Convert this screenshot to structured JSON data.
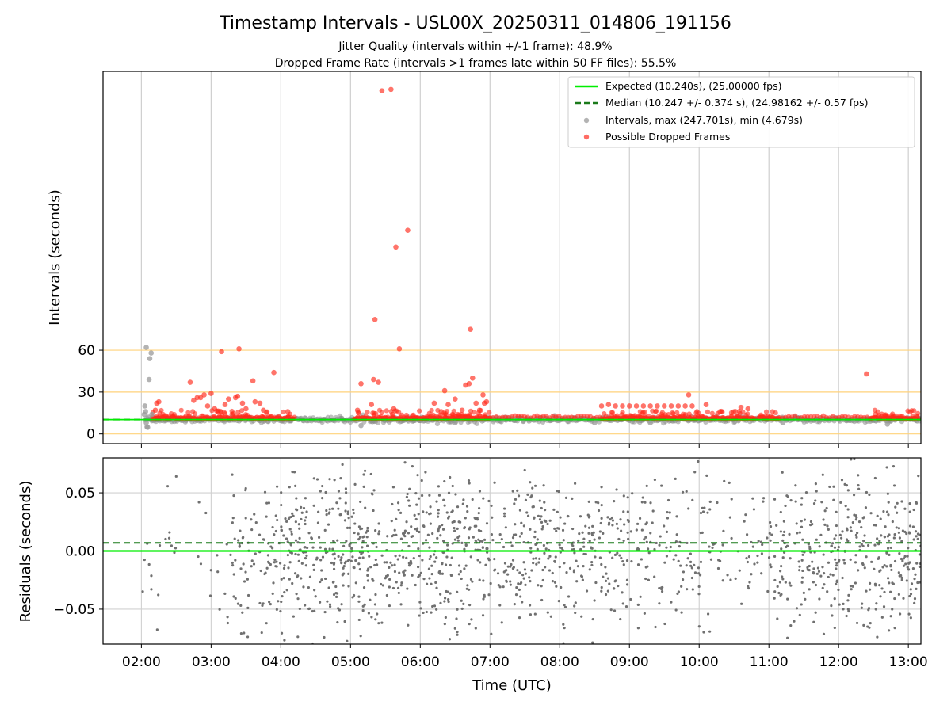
{
  "chart_data": [
    {
      "type": "scatter",
      "title": "Timestamp Intervals - USL00X_20250311_014806_191156",
      "subtitle_lines": [
        "Jitter Quality (intervals within +/-1 frame): 48.9%",
        "Dropped Frame Rate (intervals >1 frames late within 50 FF files): 55.5%"
      ],
      "xlabel": "",
      "ylabel": "Intervals (seconds)",
      "x_range_hours": [
        1.45,
        13.18
      ],
      "ylim": [
        -7,
        260
      ],
      "yticks": [
        0,
        30,
        60
      ],
      "ytick_labels": [
        "0",
        "30",
        "60"
      ],
      "reference_lines": [
        0,
        30,
        60
      ],
      "reference_line_color": "#ffd27a",
      "grid_x": true,
      "legend": {
        "placement": "top-right",
        "entries": [
          {
            "label": "Expected (10.240s), (25.00000 fps)",
            "kind": "solid-line",
            "color": "#00ee00"
          },
          {
            "label": "Median (10.247 +/- 0.374 s), (24.98162 +/- 0.57 fps)",
            "kind": "dashed-line",
            "color": "#1a7a1a"
          },
          {
            "label": "Intervals, max (247.701s), min (4.679s)",
            "kind": "marker",
            "color": "#999999"
          },
          {
            "label": "Possible Dropped Frames",
            "kind": "marker",
            "color": "#ff3b30"
          }
        ]
      },
      "expected_interval": 10.24,
      "median_interval": 10.247,
      "colors": {
        "intervals": "#8c8c8c",
        "dropped": "#ff2a1a",
        "expected": "#00ee00",
        "median": "#1a7a1a"
      },
      "series": [
        {
          "name": "Intervals, max (247.701s), min (4.679s)",
          "points": [
            [
              2.05,
              20
            ],
            [
              2.06,
              16
            ],
            [
              2.07,
              8
            ],
            [
              2.08,
              5
            ],
            [
              2.09,
              4.7
            ],
            [
              2.04,
              14
            ],
            [
              2.1,
              12
            ],
            [
              2.12,
              54
            ],
            [
              2.11,
              39
            ],
            [
              2.14,
              58
            ],
            [
              2.07,
              62
            ],
            [
              2.15,
              14
            ],
            [
              5.15,
              6
            ],
            [
              6.5,
              8
            ],
            [
              8.5,
              8
            ],
            [
              9.3,
              8
            ],
            [
              11.2,
              8
            ],
            [
              12.7,
              7
            ]
          ]
        },
        {
          "name": "Possible Dropped Frames",
          "points": [
            [
              2.2,
              17
            ],
            [
              2.25,
              23
            ],
            [
              2.22,
              22
            ],
            [
              2.7,
              37
            ],
            [
              2.75,
              24
            ],
            [
              2.8,
              26
            ],
            [
              2.85,
              26
            ],
            [
              2.9,
              28
            ],
            [
              2.95,
              20
            ],
            [
              3.0,
              29
            ],
            [
              3.05,
              18
            ],
            [
              3.1,
              16
            ],
            [
              3.15,
              59
            ],
            [
              3.2,
              21
            ],
            [
              3.25,
              25
            ],
            [
              3.3,
              14
            ],
            [
              3.35,
              26
            ],
            [
              3.38,
              27
            ],
            [
              3.4,
              61
            ],
            [
              3.45,
              22
            ],
            [
              3.5,
              18
            ],
            [
              3.6,
              38
            ],
            [
              3.63,
              23
            ],
            [
              3.7,
              22
            ],
            [
              3.75,
              17
            ],
            [
              3.9,
              44
            ],
            [
              4.1,
              16
            ],
            [
              5.1,
              17
            ],
            [
              5.15,
              36
            ],
            [
              5.3,
              21
            ],
            [
              5.33,
              39
            ],
            [
              5.35,
              82
            ],
            [
              5.4,
              37
            ],
            [
              5.45,
              246
            ],
            [
              5.58,
              247
            ],
            [
              5.6,
              14
            ],
            [
              5.62,
              18
            ],
            [
              5.65,
              134
            ],
            [
              5.7,
              61
            ],
            [
              5.82,
              146
            ],
            [
              6.2,
              22
            ],
            [
              6.3,
              16
            ],
            [
              6.35,
              31
            ],
            [
              6.4,
              21
            ],
            [
              6.5,
              25
            ],
            [
              6.6,
              17
            ],
            [
              6.65,
              35
            ],
            [
              6.7,
              36
            ],
            [
              6.72,
              75
            ],
            [
              6.75,
              40
            ],
            [
              6.8,
              22
            ],
            [
              6.85,
              17
            ],
            [
              6.9,
              28
            ],
            [
              6.92,
              22
            ],
            [
              6.95,
              23
            ],
            [
              8.6,
              20
            ],
            [
              8.7,
              21
            ],
            [
              8.8,
              20
            ],
            [
              8.9,
              20
            ],
            [
              9.0,
              20
            ],
            [
              9.1,
              20
            ],
            [
              9.2,
              20
            ],
            [
              9.3,
              20
            ],
            [
              9.4,
              20
            ],
            [
              9.5,
              20
            ],
            [
              9.6,
              20
            ],
            [
              9.7,
              20
            ],
            [
              9.8,
              20
            ],
            [
              9.85,
              28
            ],
            [
              9.9,
              20
            ],
            [
              10.1,
              21
            ],
            [
              10.3,
              16
            ],
            [
              10.6,
              19
            ],
            [
              10.7,
              18
            ],
            [
              12.4,
              43
            ]
          ]
        }
      ],
      "band": {
        "x_start": 2.05,
        "x_end": 13.18,
        "gray_base": 10.24,
        "red_base": 10.5,
        "dense_red_segments": [
          [
            2.15,
            4.2
          ],
          [
            5.05,
            5.95
          ],
          [
            5.95,
            7.0
          ],
          [
            8.6,
            10.8
          ],
          [
            10.85,
            11.15
          ],
          [
            12.45,
            13.15
          ]
        ],
        "sparse_red_segments": [
          [
            7.0,
            8.6
          ],
          [
            11.15,
            12.45
          ]
        ]
      }
    },
    {
      "type": "scatter",
      "title": "",
      "xlabel": "Time (UTC)",
      "ylabel": "Residuals (seconds)",
      "x_range_hours": [
        1.45,
        13.18
      ],
      "ylim": [
        -0.08,
        0.08
      ],
      "yticks": [
        -0.05,
        0.0,
        0.05
      ],
      "ytick_labels": [
        "−0.05",
        "0.00",
        "0.05"
      ],
      "xticks_hours": [
        2,
        3,
        4,
        5,
        6,
        7,
        8,
        9,
        10,
        11,
        12,
        13
      ],
      "xtick_labels": [
        "02:00",
        "03:00",
        "04:00",
        "05:00",
        "06:00",
        "07:00",
        "08:00",
        "09:00",
        "10:00",
        "11:00",
        "12:00",
        "13:00"
      ],
      "grid": true,
      "reference_lines": [
        {
          "value": 0.0,
          "style": "solid",
          "color": "#00ee00"
        },
        {
          "value": 0.007,
          "style": "dashed",
          "color": "#1a7a1a"
        }
      ],
      "series": [
        {
          "name": "",
          "color": "#707070",
          "density": [
            [
              1.45,
              2.0,
              0
            ],
            [
              2.0,
              2.4,
              35
            ],
            [
              2.4,
              3.0,
              18
            ],
            [
              3.0,
              3.3,
              30
            ],
            [
              3.3,
              4.0,
              130
            ],
            [
              4.0,
              5.0,
              210
            ],
            [
              5.0,
              6.0,
              180
            ],
            [
              6.0,
              7.0,
              200
            ],
            [
              7.0,
              8.0,
              160
            ],
            [
              8.0,
              9.0,
              150
            ],
            [
              9.0,
              10.0,
              110
            ],
            [
              10.0,
              11.0,
              70
            ],
            [
              11.0,
              12.0,
              160
            ],
            [
              12.0,
              13.18,
              190
            ]
          ]
        }
      ]
    }
  ]
}
